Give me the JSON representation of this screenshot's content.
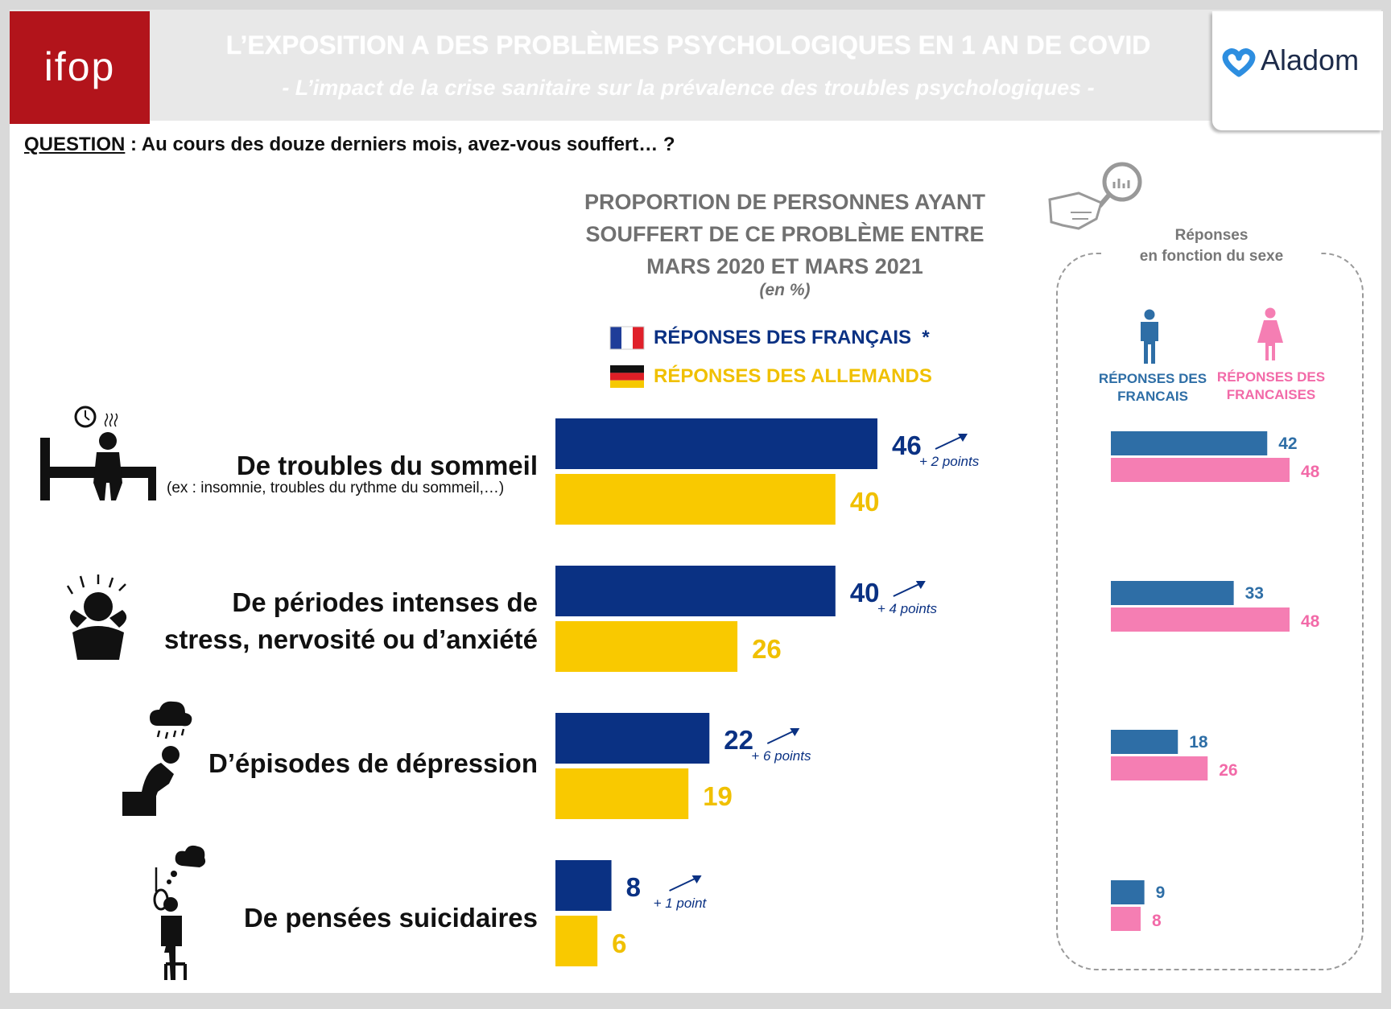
{
  "header": {
    "title": "L’EXPOSITION A DES PROBLÈMES PSYCHOLOGIQUES EN 1 AN DE COVID",
    "subtitle": "- L’impact de la crise sanitaire sur la prévalence des troubles psychologiques -",
    "logo_left": "ifop",
    "logo_right": "Aladom"
  },
  "question": {
    "label": "QUESTION",
    "separator": " : ",
    "text": "Au cours des douze derniers mois, avez-vous souffert… ?"
  },
  "colors": {
    "france_bar": "#0a3183",
    "germany_bar": "#f9c900",
    "men_bar": "#2e6ea6",
    "women_bar": "#f57eb3",
    "france_text": "#0a3183",
    "germany_text": "#f0c000",
    "men_text": "#2e6ea6",
    "women_text": "#f26aa8"
  },
  "icons": [
    "alarm-bed-icon",
    "stressed-head-icon",
    "rain-cloud-depressed-icon",
    "noose-thought-icon",
    "magnifier-hand-icon",
    "man-icon",
    "woman-icon",
    "french-flag-icon",
    "german-flag-icon"
  ],
  "chart_data": [
    {
      "type": "bar",
      "orientation": "horizontal",
      "title_lines": [
        "PROPORTION DE PERSONNES AYANT",
        "SOUFFERT DE CE PROBLÈME ENTRE",
        "MARS 2020 ET MARS 2021"
      ],
      "unit": "(en %)",
      "legend": [
        "RÉPONSES DES FRANÇAIS  *",
        "RÉPONSES DES ALLEMANDS"
      ],
      "xlim": [
        0,
        100
      ],
      "grid": false,
      "categories": [
        {
          "label_lines": [
            "De troubles du sommeil"
          ],
          "note": "(ex : insomnie, troubles du rythme du sommeil,…)"
        },
        {
          "label_lines": [
            "De périodes intenses de",
            "stress, nervosité ou d’anxiété"
          ],
          "note": ""
        },
        {
          "label_lines": [
            "D’épisodes de dépression"
          ],
          "note": ""
        },
        {
          "label_lines": [
            "De pensées suicidaires"
          ],
          "note": ""
        }
      ],
      "series": [
        {
          "name": "RÉPONSES DES FRANÇAIS",
          "values": [
            46,
            40,
            22,
            8
          ],
          "deltas": [
            "+ 2 points",
            "+ 4 points",
            "+ 6 points",
            "+ 1 point"
          ]
        },
        {
          "name": "RÉPONSES DES ALLEMANDS",
          "values": [
            40,
            26,
            19,
            6
          ]
        }
      ]
    },
    {
      "type": "bar",
      "orientation": "horizontal",
      "title_lines": [
        "Réponses",
        "en fonction du sexe"
      ],
      "xlim": [
        0,
        100
      ],
      "grid": false,
      "series": [
        {
          "name_lines": [
            "RÉPONSES DES",
            "FRANCAIS"
          ],
          "values": [
            42,
            33,
            18,
            9
          ]
        },
        {
          "name_lines": [
            "RÉPONSES DES",
            "FRANCAISES"
          ],
          "values": [
            48,
            48,
            26,
            8
          ]
        }
      ]
    }
  ]
}
